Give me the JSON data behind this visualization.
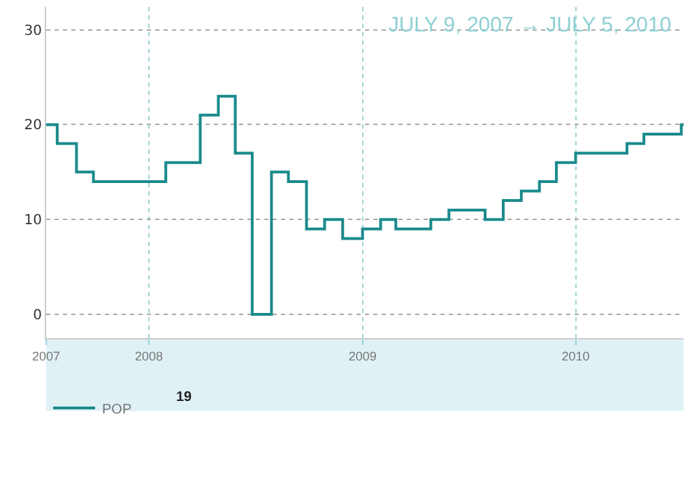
{
  "chart_data": {
    "type": "step",
    "title": "JULY 9, 2007 → JULY 5, 2010",
    "x": [
      "2007-07-09",
      "2007-07-28",
      "2007-08-30",
      "2007-09-28",
      "2008-01-30",
      "2008-03-29",
      "2008-04-29",
      "2008-05-28",
      "2008-06-26",
      "2008-07-29",
      "2008-08-27",
      "2008-09-27",
      "2008-10-28",
      "2008-11-28",
      "2009-01-01",
      "2009-02-01",
      "2009-02-27",
      "2009-04-28",
      "2009-05-29",
      "2009-07-30",
      "2009-08-30",
      "2009-09-30",
      "2009-10-31",
      "2009-11-29",
      "2010-01-01",
      "2010-03-30",
      "2010-04-28",
      "2010-07-01",
      "2010-07-05"
    ],
    "series": [
      {
        "name": "POP",
        "color": "#1a8a8c",
        "values": [
          20,
          18,
          15,
          14,
          16,
          21,
          23,
          17,
          0,
          15,
          14,
          9,
          10,
          8,
          9,
          10,
          9,
          10,
          11,
          10,
          12,
          13,
          14,
          16,
          17,
          18,
          19,
          20,
          20
        ]
      }
    ],
    "annotations": [
      "19"
    ],
    "xlim": [
      "2007-07-09",
      "2010-07-05"
    ],
    "xticks": [
      {
        "value": "2007-07-09",
        "label": "2007"
      },
      {
        "value": "2008-01-01",
        "label": "2008"
      },
      {
        "value": "2009-01-01",
        "label": "2009"
      },
      {
        "value": "2010-01-01",
        "label": "2010"
      }
    ],
    "ylim": [
      -2.5,
      32.4
    ],
    "yticks": [
      0,
      10,
      20,
      30
    ],
    "grid": true,
    "legend": "bottom left",
    "line_style": "solid"
  }
}
